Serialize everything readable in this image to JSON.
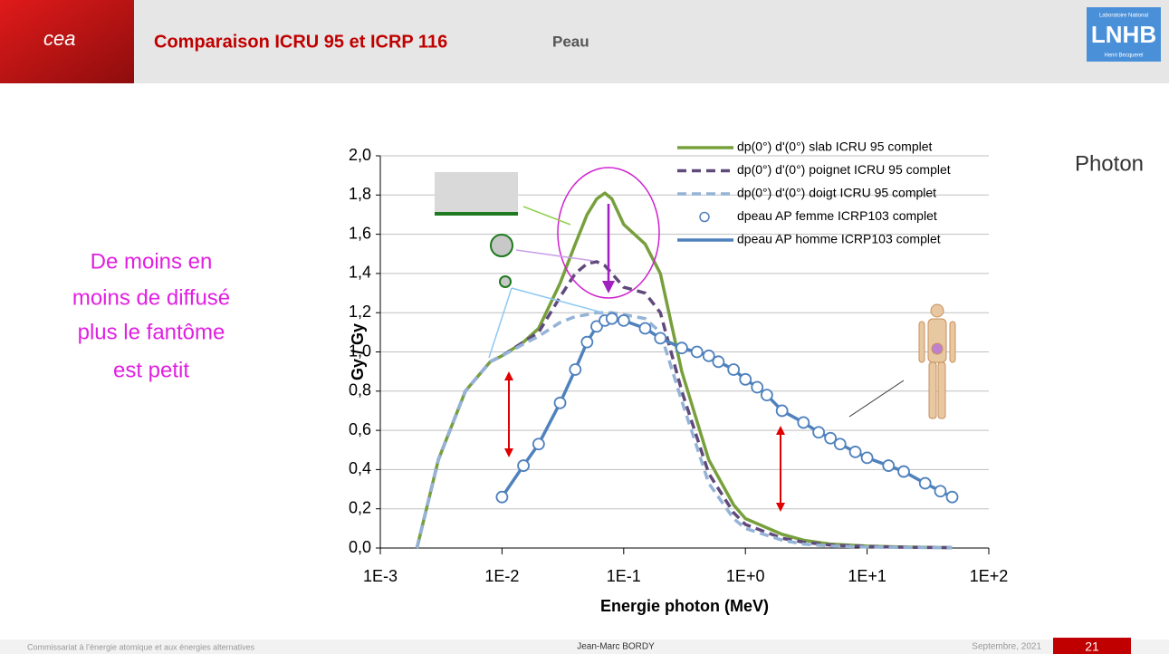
{
  "header": {
    "logo_left": "cea",
    "title": "Comparaison ICRU 95 et ICRP 116",
    "subtitle": "Peau",
    "logo_right": "LNHB",
    "logo_right_top": "Laboratoire National",
    "logo_right_bottom": "Henri Becquerel"
  },
  "side_text": [
    "De moins en",
    "moins de diffusé",
    "plus le fantôme",
    "est petit"
  ],
  "corner_label": "Photon",
  "footer": {
    "left": "Commissariat à l’énergie atomique et aux énergies alternatives",
    "center": "Jean-Marc BORDY",
    "date": "Septembre, 2021",
    "page": "21"
  },
  "chart_data": {
    "type": "line",
    "x_label": "Energie photon (MeV)",
    "y_label": "Gy / Gy",
    "x_log": true,
    "grid": true,
    "xlim": [
      0.001,
      100
    ],
    "xticks": [
      {
        "value": 0.001,
        "label": "1E-3"
      },
      {
        "value": 0.01,
        "label": "1E-2"
      },
      {
        "value": 0.1,
        "label": "1E-1"
      },
      {
        "value": 1,
        "label": "1E+0"
      },
      {
        "value": 10,
        "label": "1E+1"
      },
      {
        "value": 100,
        "label": "1E+2"
      }
    ],
    "ylim": [
      0,
      2
    ],
    "yticks": [
      {
        "value": 0,
        "label": "0,0"
      },
      {
        "value": 0.2,
        "label": "0,2"
      },
      {
        "value": 0.4,
        "label": "0,4"
      },
      {
        "value": 0.6,
        "label": "0,6"
      },
      {
        "value": 0.8,
        "label": "0,8"
      },
      {
        "value": 1,
        "label": "1,0"
      },
      {
        "value": 1.2,
        "label": "1,2"
      },
      {
        "value": 1.4,
        "label": "1,4"
      },
      {
        "value": 1.6,
        "label": "1,6"
      },
      {
        "value": 1.8,
        "label": "1,8"
      },
      {
        "value": 2,
        "label": "2,0"
      }
    ],
    "series": [
      {
        "name": "dp(0°) d'(0°) slab ICRU 95 complet",
        "color": "#77a03c",
        "style": "solid",
        "x": [
          0.002,
          0.003,
          0.005,
          0.008,
          0.01,
          0.015,
          0.02,
          0.03,
          0.04,
          0.05,
          0.06,
          0.07,
          0.08,
          0.1,
          0.15,
          0.2,
          0.3,
          0.5,
          0.8,
          1,
          2,
          3,
          5,
          10,
          20,
          50
        ],
        "values": [
          0,
          0.45,
          0.8,
          0.95,
          0.98,
          1.05,
          1.12,
          1.35,
          1.55,
          1.7,
          1.78,
          1.81,
          1.78,
          1.65,
          1.55,
          1.4,
          0.9,
          0.45,
          0.22,
          0.15,
          0.07,
          0.04,
          0.02,
          0.01,
          0.005,
          0.002
        ]
      },
      {
        "name": "dp(0°) d'(0°) poignet ICRU 95 complet",
        "color": "#604a7b",
        "style": "dashed",
        "x": [
          0.002,
          0.003,
          0.005,
          0.008,
          0.01,
          0.015,
          0.02,
          0.03,
          0.04,
          0.05,
          0.06,
          0.07,
          0.08,
          0.1,
          0.15,
          0.2,
          0.3,
          0.5,
          0.8,
          1,
          2,
          3,
          5,
          10,
          20,
          50
        ],
        "values": [
          0,
          0.45,
          0.8,
          0.95,
          0.98,
          1.05,
          1.1,
          1.28,
          1.4,
          1.45,
          1.46,
          1.44,
          1.4,
          1.33,
          1.3,
          1.2,
          0.8,
          0.38,
          0.18,
          0.12,
          0.05,
          0.03,
          0.015,
          0.008,
          0.004,
          0.002
        ]
      },
      {
        "name": "dp(0°) d'(0°) doigt ICRU 95 complet",
        "color": "#95b3d7",
        "style": "dashed",
        "x": [
          0.002,
          0.003,
          0.005,
          0.008,
          0.01,
          0.015,
          0.02,
          0.03,
          0.04,
          0.05,
          0.06,
          0.07,
          0.08,
          0.1,
          0.15,
          0.2,
          0.3,
          0.5,
          0.8,
          1,
          2,
          3,
          5,
          10,
          20,
          50
        ],
        "values": [
          0,
          0.45,
          0.8,
          0.95,
          0.98,
          1.04,
          1.08,
          1.15,
          1.18,
          1.19,
          1.2,
          1.2,
          1.2,
          1.19,
          1.17,
          1.1,
          0.75,
          0.33,
          0.15,
          0.1,
          0.04,
          0.02,
          0.01,
          0.005,
          0.003,
          0.002
        ]
      },
      {
        "name": "dpeau AP femme ICRP103 complet",
        "color": "#4f81bd",
        "style": "markers",
        "x": [
          0.01,
          0.015,
          0.02,
          0.03,
          0.04,
          0.05,
          0.06,
          0.07,
          0.08,
          0.1,
          0.15,
          0.2,
          0.3,
          0.4,
          0.5,
          0.6,
          0.8,
          1,
          1.25,
          1.5,
          2,
          3,
          4,
          5,
          6,
          8,
          10,
          15,
          20,
          30,
          40,
          50
        ],
        "values": [
          0.26,
          0.42,
          0.53,
          0.74,
          0.91,
          1.05,
          1.13,
          1.16,
          1.17,
          1.16,
          1.12,
          1.07,
          1.02,
          1.0,
          0.98,
          0.95,
          0.91,
          0.86,
          0.82,
          0.78,
          0.7,
          0.64,
          0.59,
          0.56,
          0.53,
          0.49,
          0.46,
          0.42,
          0.39,
          0.33,
          0.29,
          0.26
        ]
      },
      {
        "name": "dpeau AP homme ICRP103 complet",
        "color": "#4f81bd",
        "style": "solid",
        "x": [
          0.01,
          0.015,
          0.02,
          0.03,
          0.04,
          0.05,
          0.06,
          0.07,
          0.08,
          0.1,
          0.15,
          0.2,
          0.3,
          0.4,
          0.5,
          0.6,
          0.8,
          1,
          1.25,
          1.5,
          2,
          3,
          4,
          5,
          6,
          8,
          10,
          15,
          20,
          30,
          40,
          50
        ],
        "values": [
          0.26,
          0.42,
          0.53,
          0.74,
          0.91,
          1.05,
          1.13,
          1.16,
          1.17,
          1.16,
          1.12,
          1.07,
          1.02,
          1.0,
          0.98,
          0.95,
          0.91,
          0.86,
          0.82,
          0.78,
          0.7,
          0.64,
          0.59,
          0.56,
          0.53,
          0.49,
          0.46,
          0.42,
          0.39,
          0.33,
          0.29,
          0.26
        ]
      }
    ]
  }
}
